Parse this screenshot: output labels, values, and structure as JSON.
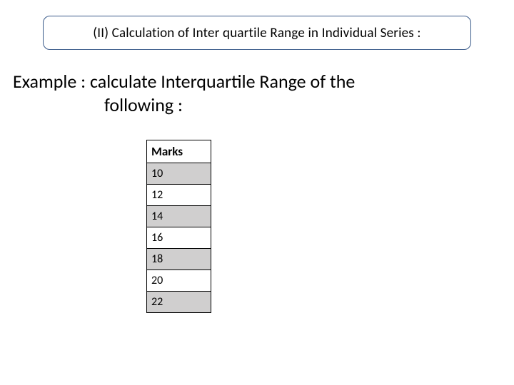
{
  "title": "(II) Calculation of  Inter quartile Range in Individual Series :",
  "example": {
    "line1": "Example : calculate Interquartile Range of the",
    "line2": "following :"
  },
  "table": {
    "header": "Marks",
    "rows": [
      {
        "value": "10",
        "bg": "grey"
      },
      {
        "value": "12",
        "bg": "white"
      },
      {
        "value": "14",
        "bg": "grey"
      },
      {
        "value": "16",
        "bg": "white"
      },
      {
        "value": "18",
        "bg": "grey"
      },
      {
        "value": "20",
        "bg": "white"
      },
      {
        "value": "22",
        "bg": "grey"
      }
    ],
    "colors": {
      "border": "#000000",
      "grey_bg": "#d0cfcf",
      "white_bg": "#ffffff",
      "text": "#000000"
    }
  },
  "frame": {
    "border_color": "#3a5a8a",
    "background": "#ffffff",
    "border_radius": 10
  }
}
